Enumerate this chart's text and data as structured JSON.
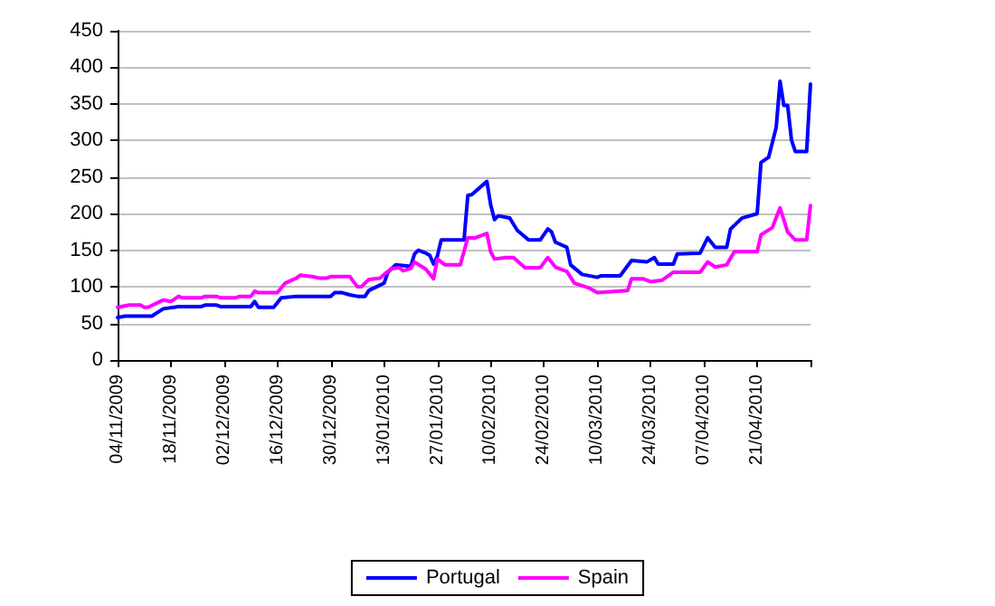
{
  "chart_data": {
    "type": "line",
    "xlim": [
      "2009-11-04",
      "2010-05-05"
    ],
    "xticks": [
      {
        "value": "2009-11-04",
        "label": "04/11/2009"
      },
      {
        "value": "2009-11-18",
        "label": "18/11/2009"
      },
      {
        "value": "2009-12-02",
        "label": "02/12/2009"
      },
      {
        "value": "2009-12-16",
        "label": "16/12/2009"
      },
      {
        "value": "2009-12-30",
        "label": "30/12/2009"
      },
      {
        "value": "2010-01-13",
        "label": "13/01/2010"
      },
      {
        "value": "2010-01-27",
        "label": "27/01/2010"
      },
      {
        "value": "2010-02-10",
        "label": "10/02/2010"
      },
      {
        "value": "2010-02-24",
        "label": "24/02/2010"
      },
      {
        "value": "2010-03-10",
        "label": "10/03/2010"
      },
      {
        "value": "2010-03-24",
        "label": "24/03/2010"
      },
      {
        "value": "2010-04-07",
        "label": "07/04/2010"
      },
      {
        "value": "2010-04-21",
        "label": "21/04/2010"
      },
      {
        "value": "2010-05-05",
        "label": null
      }
    ],
    "ylim": [
      0,
      450
    ],
    "yticks": [
      0,
      50,
      100,
      150,
      200,
      250,
      300,
      350,
      400,
      450
    ],
    "grid": "y",
    "legend": "bottom",
    "marker": "none",
    "line_style": "solid",
    "series": [
      {
        "name": "Portugal",
        "color": "#0000ff",
        "x": [
          "2009-11-04",
          "2009-11-06",
          "2009-11-13",
          "2009-11-16",
          "2009-11-20",
          "2009-11-26",
          "2009-11-27",
          "2009-11-30",
          "2009-12-01",
          "2009-12-09",
          "2009-12-10",
          "2009-12-11",
          "2009-12-15",
          "2009-12-17",
          "2009-12-21",
          "2009-12-30",
          "2009-12-31",
          "2010-01-02",
          "2010-01-04",
          "2010-01-06",
          "2010-01-08",
          "2010-01-09",
          "2010-01-11",
          "2010-01-13",
          "2010-01-14",
          "2010-01-16",
          "2010-01-20",
          "2010-01-21",
          "2010-01-22",
          "2010-01-24",
          "2010-01-25",
          "2010-01-26",
          "2010-01-27",
          "2010-01-28",
          "2010-02-03",
          "2010-02-04",
          "2010-02-05",
          "2010-02-09",
          "2010-02-10",
          "2010-02-11",
          "2010-02-12",
          "2010-02-15",
          "2010-02-17",
          "2010-02-20",
          "2010-02-23",
          "2010-02-25",
          "2010-02-26",
          "2010-02-27",
          "2010-03-02",
          "2010-03-03",
          "2010-03-06",
          "2010-03-10",
          "2010-03-11",
          "2010-03-16",
          "2010-03-19",
          "2010-03-23",
          "2010-03-25",
          "2010-03-26",
          "2010-03-30",
          "2010-03-31",
          "2010-04-06",
          "2010-04-08",
          "2010-04-10",
          "2010-04-13",
          "2010-04-14",
          "2010-04-17",
          "2010-04-21",
          "2010-04-22",
          "2010-04-24",
          "2010-04-26",
          "2010-04-27",
          "2010-04-28",
          "2010-04-29",
          "2010-04-30",
          "2010-05-01",
          "2010-05-04",
          "2010-05-05"
        ],
        "values": [
          58,
          60,
          60,
          70,
          73,
          73,
          75,
          75,
          73,
          73,
          80,
          72,
          72,
          85,
          87,
          87,
          92,
          92,
          89,
          87,
          87,
          95,
          100,
          105,
          120,
          130,
          128,
          145,
          150,
          146,
          143,
          131,
          142,
          164,
          164,
          225,
          226,
          244,
          212,
          192,
          197,
          194,
          177,
          164,
          164,
          179,
          175,
          161,
          154,
          130,
          117,
          113,
          115,
          115,
          136,
          134,
          140,
          131,
          131,
          145,
          146,
          167,
          154,
          154,
          179,
          194,
          200,
          270,
          277,
          318,
          381,
          348,
          348,
          301,
          285,
          285,
          377
        ]
      },
      {
        "name": "Spain",
        "color": "#ff00ff",
        "x": [
          "2009-11-04",
          "2009-11-07",
          "2009-11-10",
          "2009-11-11",
          "2009-11-12",
          "2009-11-16",
          "2009-11-18",
          "2009-11-20",
          "2009-11-21",
          "2009-11-26",
          "2009-11-27",
          "2009-11-30",
          "2009-12-01",
          "2009-12-05",
          "2009-12-06",
          "2009-12-09",
          "2009-12-10",
          "2009-12-11",
          "2009-12-16",
          "2009-12-18",
          "2009-12-21",
          "2009-12-22",
          "2009-12-25",
          "2009-12-27",
          "2009-12-29",
          "2009-12-30",
          "2010-01-04",
          "2010-01-06",
          "2010-01-07",
          "2010-01-09",
          "2010-01-12",
          "2010-01-13",
          "2010-01-15",
          "2010-01-17",
          "2010-01-18",
          "2010-01-20",
          "2010-01-21",
          "2010-01-24",
          "2010-01-26",
          "2010-01-27",
          "2010-01-29",
          "2010-02-02",
          "2010-02-04",
          "2010-02-06",
          "2010-02-09",
          "2010-02-10",
          "2010-02-11",
          "2010-02-14",
          "2010-02-16",
          "2010-02-19",
          "2010-02-23",
          "2010-02-25",
          "2010-02-27",
          "2010-03-02",
          "2010-03-04",
          "2010-03-08",
          "2010-03-10",
          "2010-03-18",
          "2010-03-19",
          "2010-03-22",
          "2010-03-24",
          "2010-03-27",
          "2010-03-30",
          "2010-04-06",
          "2010-04-08",
          "2010-04-10",
          "2010-04-13",
          "2010-04-15",
          "2010-04-21",
          "2010-04-22",
          "2010-04-25",
          "2010-04-27",
          "2010-04-29",
          "2010-05-01",
          "2010-05-04",
          "2010-05-05"
        ],
        "values": [
          72,
          75,
          75,
          72,
          72,
          82,
          80,
          87,
          85,
          85,
          87,
          87,
          85,
          85,
          87,
          87,
          94,
          92,
          92,
          105,
          112,
          116,
          114,
          112,
          112,
          114,
          114,
          100,
          100,
          110,
          112,
          117,
          125,
          126,
          122,
          125,
          134,
          124,
          111,
          138,
          130,
          130,
          167,
          167,
          173,
          148,
          138,
          140,
          140,
          126,
          126,
          140,
          127,
          121,
          105,
          98,
          92,
          95,
          111,
          111,
          107,
          109,
          120,
          120,
          134,
          127,
          130,
          148,
          148,
          171,
          181,
          208,
          175,
          164,
          164,
          211
        ]
      }
    ]
  }
}
